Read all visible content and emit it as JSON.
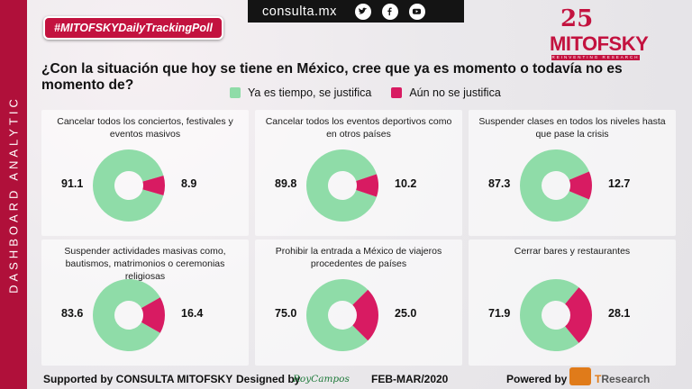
{
  "sidebar_label": "DASHBOARD ANALYTIC",
  "hashtag": "#MITOFSKYDailyTrackingPoll",
  "topbar": {
    "site": "consulta.mx",
    "icons": [
      "twitter-icon",
      "facebook-icon",
      "youtube-icon"
    ]
  },
  "logo": {
    "number": "25",
    "name": "MITOFSKY",
    "tagline": "REINVENTING RESEARCH"
  },
  "question": "¿Con la situación que hoy se tiene en México, cree que ya es momento o todavía no es momento de?",
  "legend": {
    "yes": "Ya es tiempo, se justifica",
    "no": "Aún no se justifica"
  },
  "colors": {
    "yes": "#8fdca8",
    "no": "#d81b62",
    "brand": "#c3123f"
  },
  "chart_data": [
    {
      "type": "pie",
      "title": "Cancelar todos los conciertos, festivales y eventos masivos",
      "categories": [
        "Ya es tiempo, se justifica",
        "Aún no se justifica"
      ],
      "values": [
        91.1,
        8.9
      ],
      "labels": [
        "91.1",
        "8.9"
      ]
    },
    {
      "type": "pie",
      "title": "Cancelar todos los eventos deportivos como en otros países",
      "categories": [
        "Ya es tiempo, se justifica",
        "Aún no se justifica"
      ],
      "values": [
        89.8,
        10.2
      ],
      "labels": [
        "89.8",
        "10.2"
      ]
    },
    {
      "type": "pie",
      "title": "Suspender clases en todos los niveles hasta que pase la crisis",
      "categories": [
        "Ya es tiempo, se justifica",
        "Aún no se justifica"
      ],
      "values": [
        87.3,
        12.7
      ],
      "labels": [
        "87.3",
        "12.7"
      ]
    },
    {
      "type": "pie",
      "title": "Suspender actividades masivas como, bautismos, matrimonios o ceremonias religiosas",
      "categories": [
        "Ya es tiempo, se justifica",
        "Aún no se justifica"
      ],
      "values": [
        83.6,
        16.4
      ],
      "labels": [
        "83.6",
        "16.4"
      ]
    },
    {
      "type": "pie",
      "title": "Prohibir la entrada a México de viajeros procedentes de países",
      "categories": [
        "Ya es tiempo, se justifica",
        "Aún no se justifica"
      ],
      "values": [
        75.0,
        25.0
      ],
      "labels": [
        "75.0",
        "25.0"
      ]
    },
    {
      "type": "pie",
      "title": "Cerrar bares y restaurantes",
      "categories": [
        "Ya es tiempo, se justifica",
        "Aún no se justifica"
      ],
      "values": [
        71.9,
        28.1
      ],
      "labels": [
        "71.9",
        "28.1"
      ]
    }
  ],
  "footer": {
    "supported": "Supported by  CONSULTA  MITOFSKY",
    "designed": "Designed by",
    "designer": "RoyCampos",
    "date": "FEB-MAR/2020",
    "powered": "Powered by",
    "tr_prefix": "T",
    "tr_rest": "Research"
  }
}
